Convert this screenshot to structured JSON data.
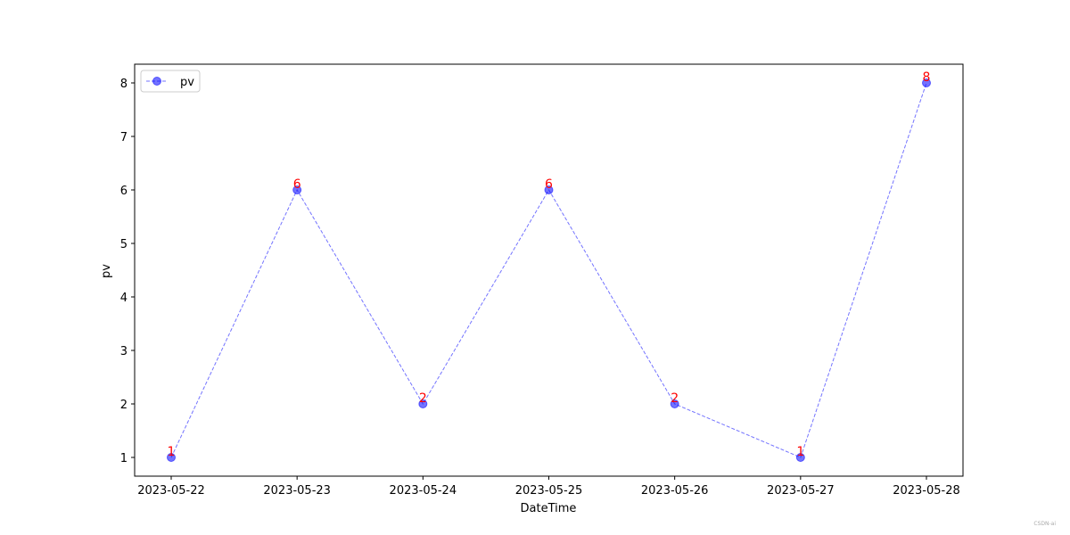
{
  "chart_data": {
    "type": "line",
    "categories": [
      "2023-05-22",
      "2023-05-23",
      "2023-05-24",
      "2023-05-25",
      "2023-05-26",
      "2023-05-27",
      "2023-05-28"
    ],
    "series": [
      {
        "name": "pv",
        "color": "#0000ff",
        "values": [
          1,
          6,
          2,
          6,
          2,
          1,
          8
        ]
      }
    ],
    "label_color": "#ff0000",
    "x_label": "DateTime",
    "y_label": "pv",
    "ylim": [
      0.65,
      8.35
    ],
    "yticks": [
      1,
      2,
      3,
      4,
      5,
      6,
      7,
      8
    ],
    "legend": "upper left",
    "watermark": "CSDN-ai"
  }
}
